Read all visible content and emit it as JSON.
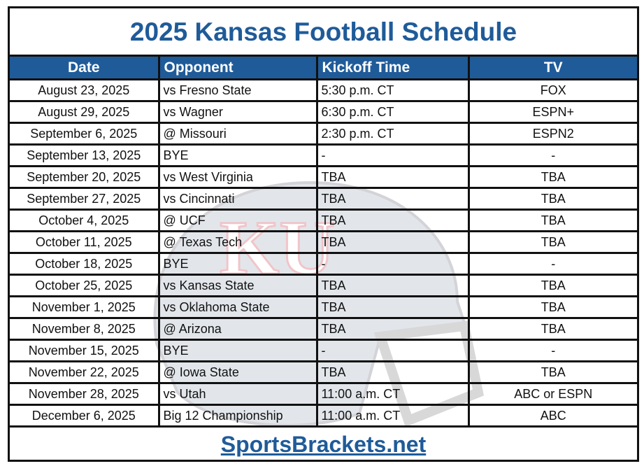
{
  "title": "2025 Kansas Football Schedule",
  "columns": [
    "Date",
    "Opponent",
    "Kickoff Time",
    "TV"
  ],
  "rows": [
    [
      "August 23, 2025",
      "vs Fresno State",
      "5:30 p.m. CT",
      "FOX"
    ],
    [
      "August 29, 2025",
      "vs Wagner",
      "6:30 p.m. CT",
      "ESPN+"
    ],
    [
      "September 6, 2025",
      "@ Missouri",
      "2:30 p.m. CT",
      "ESPN2"
    ],
    [
      "September 13, 2025",
      "BYE",
      "-",
      "-"
    ],
    [
      "September 20, 2025",
      "vs West Virginia",
      "TBA",
      "TBA"
    ],
    [
      "September 27, 2025",
      "vs Cincinnati",
      "TBA",
      "TBA"
    ],
    [
      "October 4, 2025",
      "@ UCF",
      "TBA",
      "TBA"
    ],
    [
      "October 11, 2025",
      "@ Texas Tech",
      "TBA",
      "TBA"
    ],
    [
      "October 18, 2025",
      "BYE",
      "-",
      "-"
    ],
    [
      "October 25, 2025",
      "vs Kansas State",
      "TBA",
      "TBA"
    ],
    [
      "November 1, 2025",
      "vs Oklahoma State",
      "TBA",
      "TBA"
    ],
    [
      "November 8, 2025",
      "@ Arizona",
      "TBA",
      "TBA"
    ],
    [
      "November 15, 2025",
      "BYE",
      "-",
      "-"
    ],
    [
      "November 22, 2025",
      "@ Iowa State",
      "TBA",
      "TBA"
    ],
    [
      "November 28, 2025",
      "vs Utah",
      "11:00 a.m. CT",
      "ABC or ESPN"
    ],
    [
      "December 6, 2025",
      "Big 12 Championship",
      "11:00 a.m. CT",
      "ABC"
    ]
  ],
  "footer": {
    "link": "SportsBrackets.net"
  },
  "watermark": {
    "icon": "kansas-helmet-watermark",
    "text": "KU"
  },
  "colors": {
    "accent": "#1f5b99",
    "border": "#111111"
  }
}
